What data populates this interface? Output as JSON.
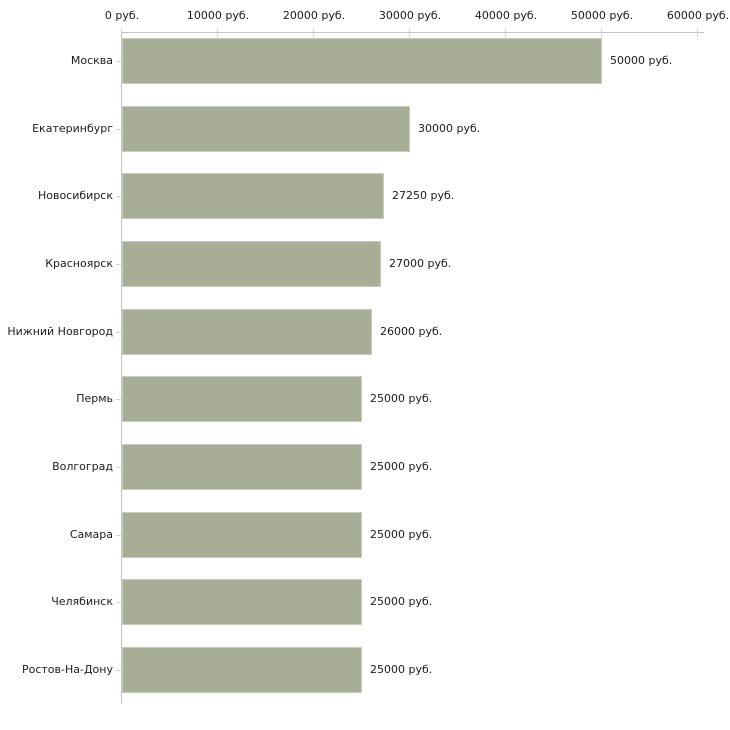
{
  "chart_data": {
    "type": "bar",
    "orientation": "horizontal",
    "title": "",
    "xlabel": "",
    "ylabel": "",
    "unit": "руб.",
    "grid": false,
    "legend": "none",
    "xlim": [
      0,
      60000
    ],
    "categories": [
      "Москва",
      "Екатеринбург",
      "Новосибирск",
      "Красноярск",
      "Нижний Новгород",
      "Пермь",
      "Волгоград",
      "Самара",
      "Челябинск",
      "Ростов-На-Дону"
    ],
    "values": [
      50000,
      30000,
      27250,
      27000,
      26000,
      25000,
      25000,
      25000,
      25000,
      25000
    ],
    "value_labels": [
      "50000 руб.",
      "30000 руб.",
      "27250 руб.",
      "27000 руб.",
      "26000 руб.",
      "25000 руб.",
      "25000 руб.",
      "25000 руб.",
      "25000 руб.",
      "25000 руб."
    ],
    "x_ticks": [
      {
        "value": 0,
        "label": "0 руб."
      },
      {
        "value": 10000,
        "label": "10000 руб."
      },
      {
        "value": 20000,
        "label": "20000 руб."
      },
      {
        "value": 30000,
        "label": "30000 руб."
      },
      {
        "value": 40000,
        "label": "40000 руб."
      },
      {
        "value": 50000,
        "label": "50000 руб."
      },
      {
        "value": 60000,
        "label": "60000 руб."
      }
    ],
    "colors": {
      "bar": "#a8ae96",
      "axis_line": "#c4c4c4",
      "tick_mark": "#d9d9b6",
      "text": "#1c1c1c",
      "background": "#ffffff"
    }
  }
}
